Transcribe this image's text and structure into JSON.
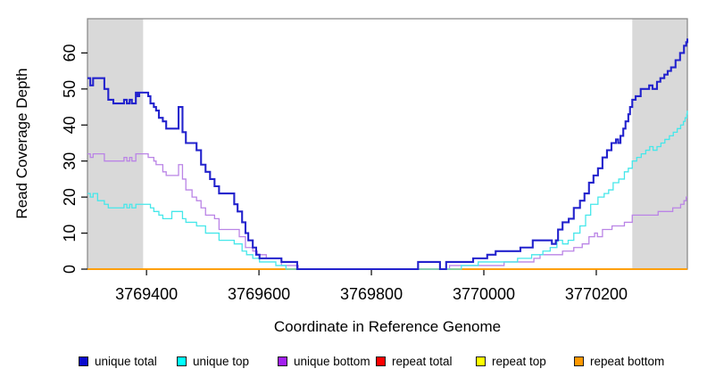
{
  "chart_data": {
    "type": "line",
    "title": "",
    "xlabel": "Coordinate in Reference Genome",
    "ylabel": "Read Coverage Depth",
    "xlim": [
      3769295,
      3770362
    ],
    "ylim": [
      0,
      69.5
    ],
    "x_ticks": [
      3769400,
      3769600,
      3769800,
      3770000,
      3770200
    ],
    "y_ticks": [
      0,
      10,
      20,
      30,
      40,
      50,
      60
    ],
    "grid": false,
    "step_interpolation": true,
    "legend_position": "bottom",
    "shaded_regions": [
      {
        "x0": 3769295,
        "x1": 3769394,
        "color": "#d9d9d9"
      },
      {
        "x0": 3770264,
        "x1": 3770362,
        "color": "#d9d9d9"
      }
    ],
    "series": [
      {
        "name": "repeat total",
        "color": "#ff0000",
        "width": 1.4,
        "points": [
          [
            3769295,
            0
          ],
          [
            3770362,
            0
          ]
        ]
      },
      {
        "name": "repeat top",
        "color": "#ffff00",
        "width": 1.4,
        "points": [
          [
            3769295,
            0
          ],
          [
            3770362,
            0
          ]
        ]
      },
      {
        "name": "repeat bottom",
        "color": "#ff9800",
        "width": 1.6,
        "points": [
          [
            3769295,
            0
          ],
          [
            3770362,
            0
          ]
        ]
      },
      {
        "name": "unique bottom",
        "color": "#ba84e6",
        "width": 1.3,
        "points": [
          [
            3769295,
            32
          ],
          [
            3769300,
            31
          ],
          [
            3769305,
            32
          ],
          [
            3769325,
            30
          ],
          [
            3769360,
            31
          ],
          [
            3769365,
            30
          ],
          [
            3769370,
            31
          ],
          [
            3769374,
            30
          ],
          [
            3769381,
            32
          ],
          [
            3769403,
            31
          ],
          [
            3769413,
            30
          ],
          [
            3769417,
            29
          ],
          [
            3769429,
            27
          ],
          [
            3769435,
            26
          ],
          [
            3769457,
            29
          ],
          [
            3769464,
            25
          ],
          [
            3769470,
            22
          ],
          [
            3769481,
            20
          ],
          [
            3769489,
            19
          ],
          [
            3769497,
            17
          ],
          [
            3769505,
            15
          ],
          [
            3769521,
            14
          ],
          [
            3769529,
            11
          ],
          [
            3769565,
            9
          ],
          [
            3769576,
            6
          ],
          [
            3769589,
            5
          ],
          [
            3769597,
            4
          ],
          [
            3769613,
            3
          ],
          [
            3769640,
            1
          ],
          [
            3769670,
            0
          ],
          [
            3769939,
            1
          ],
          [
            3770036,
            2
          ],
          [
            3770089,
            3
          ],
          [
            3770100,
            4
          ],
          [
            3770140,
            5
          ],
          [
            3770160,
            6
          ],
          [
            3770175,
            7
          ],
          [
            3770187,
            9
          ],
          [
            3770197,
            10
          ],
          [
            3770202,
            9
          ],
          [
            3770211,
            11
          ],
          [
            3770228,
            12
          ],
          [
            3770250,
            13
          ],
          [
            3770264,
            15
          ],
          [
            3770310,
            16
          ],
          [
            3770336,
            17
          ],
          [
            3770350,
            18
          ],
          [
            3770356,
            19
          ],
          [
            3770360,
            20
          ],
          [
            3770362,
            20
          ]
        ]
      },
      {
        "name": "unique top",
        "color": "#45e7ea",
        "width": 1.3,
        "points": [
          [
            3769295,
            21
          ],
          [
            3769300,
            20
          ],
          [
            3769305,
            21
          ],
          [
            3769313,
            19
          ],
          [
            3769325,
            18
          ],
          [
            3769332,
            17
          ],
          [
            3769360,
            18
          ],
          [
            3769365,
            17
          ],
          [
            3769370,
            18
          ],
          [
            3769374,
            17
          ],
          [
            3769381,
            18
          ],
          [
            3769407,
            17
          ],
          [
            3769413,
            16
          ],
          [
            3769422,
            15
          ],
          [
            3769429,
            14
          ],
          [
            3769445,
            16
          ],
          [
            3769464,
            14
          ],
          [
            3769470,
            13
          ],
          [
            3769489,
            12
          ],
          [
            3769505,
            10
          ],
          [
            3769529,
            8
          ],
          [
            3769556,
            7
          ],
          [
            3769570,
            5
          ],
          [
            3769578,
            4
          ],
          [
            3769589,
            3
          ],
          [
            3769601,
            2
          ],
          [
            3769630,
            1
          ],
          [
            3769648,
            0
          ],
          [
            3769960,
            1
          ],
          [
            3769990,
            2
          ],
          [
            3770060,
            3
          ],
          [
            3770085,
            4
          ],
          [
            3770105,
            5
          ],
          [
            3770118,
            6
          ],
          [
            3770130,
            8
          ],
          [
            3770140,
            7
          ],
          [
            3770150,
            8
          ],
          [
            3770160,
            10
          ],
          [
            3770171,
            12
          ],
          [
            3770181,
            15
          ],
          [
            3770190,
            18
          ],
          [
            3770203,
            20
          ],
          [
            3770214,
            21
          ],
          [
            3770222,
            22
          ],
          [
            3770230,
            24
          ],
          [
            3770240,
            25
          ],
          [
            3770250,
            27
          ],
          [
            3770257,
            28
          ],
          [
            3770264,
            30
          ],
          [
            3770272,
            31
          ],
          [
            3770280,
            32
          ],
          [
            3770288,
            33
          ],
          [
            3770295,
            34
          ],
          [
            3770301,
            33
          ],
          [
            3770308,
            34
          ],
          [
            3770315,
            35
          ],
          [
            3770322,
            36
          ],
          [
            3770330,
            37
          ],
          [
            3770337,
            38
          ],
          [
            3770344,
            39
          ],
          [
            3770350,
            40
          ],
          [
            3770355,
            41
          ],
          [
            3770358,
            42
          ],
          [
            3770361,
            43
          ],
          [
            3770362,
            44
          ]
        ]
      },
      {
        "name": "unique total",
        "color": "#2323cd",
        "width": 2.1,
        "points": [
          [
            3769295,
            53
          ],
          [
            3769300,
            51
          ],
          [
            3769305,
            53
          ],
          [
            3769325,
            50
          ],
          [
            3769332,
            47
          ],
          [
            3769341,
            46
          ],
          [
            3769360,
            47
          ],
          [
            3769365,
            46
          ],
          [
            3769370,
            47
          ],
          [
            3769374,
            46
          ],
          [
            3769381,
            49
          ],
          [
            3769384,
            48
          ],
          [
            3769387,
            49
          ],
          [
            3769403,
            48
          ],
          [
            3769407,
            46
          ],
          [
            3769413,
            45
          ],
          [
            3769417,
            44
          ],
          [
            3769422,
            42
          ],
          [
            3769429,
            41
          ],
          [
            3769435,
            39
          ],
          [
            3769457,
            45
          ],
          [
            3769464,
            38
          ],
          [
            3769470,
            35
          ],
          [
            3769489,
            33
          ],
          [
            3769497,
            29
          ],
          [
            3769505,
            27
          ],
          [
            3769513,
            25
          ],
          [
            3769521,
            23
          ],
          [
            3769529,
            21
          ],
          [
            3769556,
            18
          ],
          [
            3769562,
            16
          ],
          [
            3769570,
            13
          ],
          [
            3769576,
            10
          ],
          [
            3769581,
            8
          ],
          [
            3769589,
            6
          ],
          [
            3769595,
            4
          ],
          [
            3769601,
            3
          ],
          [
            3769640,
            2
          ],
          [
            3769668,
            0
          ],
          [
            3769883,
            2
          ],
          [
            3769922,
            0
          ],
          [
            3769933,
            2
          ],
          [
            3769981,
            3
          ],
          [
            3770006,
            4
          ],
          [
            3770021,
            5
          ],
          [
            3770065,
            6
          ],
          [
            3770087,
            8
          ],
          [
            3770121,
            7
          ],
          [
            3770128,
            8
          ],
          [
            3770132,
            11
          ],
          [
            3770140,
            13
          ],
          [
            3770151,
            14
          ],
          [
            3770160,
            17
          ],
          [
            3770171,
            19
          ],
          [
            3770179,
            21
          ],
          [
            3770187,
            24
          ],
          [
            3770195,
            26
          ],
          [
            3770203,
            28
          ],
          [
            3770211,
            31
          ],
          [
            3770219,
            33
          ],
          [
            3770227,
            35
          ],
          [
            3770235,
            36
          ],
          [
            3770239,
            35
          ],
          [
            3770243,
            37
          ],
          [
            3770248,
            39
          ],
          [
            3770252,
            41
          ],
          [
            3770257,
            43
          ],
          [
            3770260,
            45
          ],
          [
            3770264,
            47
          ],
          [
            3770270,
            48
          ],
          [
            3770279,
            50
          ],
          [
            3770294,
            51
          ],
          [
            3770300,
            50
          ],
          [
            3770308,
            52
          ],
          [
            3770314,
            53
          ],
          [
            3770321,
            54
          ],
          [
            3770327,
            55
          ],
          [
            3770333,
            56
          ],
          [
            3770341,
            58
          ],
          [
            3770349,
            60
          ],
          [
            3770356,
            62
          ],
          [
            3770360,
            63
          ],
          [
            3770362,
            64
          ]
        ]
      }
    ]
  },
  "legend": {
    "items": [
      {
        "label": "unique total",
        "color": "#0b0bce"
      },
      {
        "label": "unique top",
        "color": "#00ffff"
      },
      {
        "label": "unique bottom",
        "color": "#a21ff0"
      },
      {
        "label": "repeat total",
        "color": "#ff0000"
      },
      {
        "label": "repeat top",
        "color": "#ffff00"
      },
      {
        "label": "repeat bottom",
        "color": "#ff9800"
      }
    ]
  },
  "style": {
    "band_color": "#d9d9d9",
    "border_color": "#848484",
    "tick_color": "#000000"
  }
}
